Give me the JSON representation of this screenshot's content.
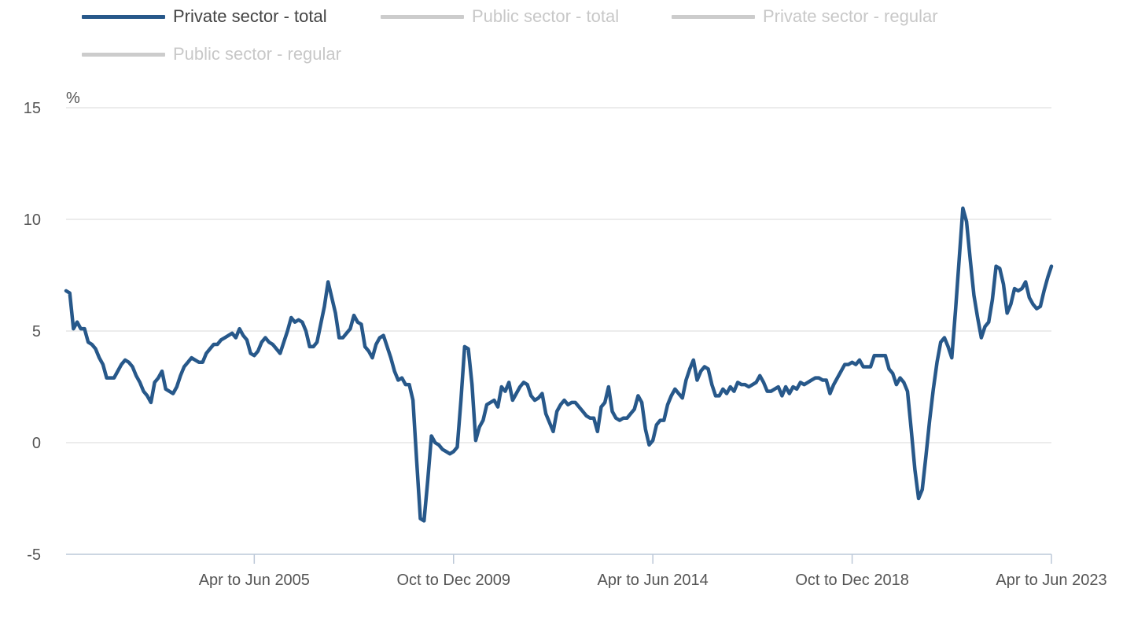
{
  "chart_data": {
    "type": "line",
    "y_unit": "%",
    "ylim": [
      -5,
      15
    ],
    "y_ticks": [
      15,
      10,
      5,
      0,
      -5
    ],
    "grid": true,
    "legend_position": "top-left",
    "x_tick_labels": [
      "Apr to Jun 2005",
      "Oct to Dec 2009",
      "Apr to Jun 2014",
      "Oct to Dec 2018",
      "Apr to Jun 2023"
    ],
    "legend": [
      {
        "name": "Private sector - total",
        "color": "#27588a",
        "active": true
      },
      {
        "name": "Public sector - total",
        "color": "#cccccc",
        "active": false
      },
      {
        "name": "Private sector - regular",
        "color": "#cccccc",
        "active": false
      },
      {
        "name": "Public sector - regular",
        "color": "#cccccc",
        "active": false
      }
    ],
    "x_period": {
      "first": "Jan to Mar 2001",
      "last": "Apr to Jun 2023",
      "step": "monthly rolling 3-month"
    },
    "series": [
      {
        "name": "Private sector - total",
        "color": "#27588a",
        "values": [
          6.8,
          6.7,
          5.1,
          5.4,
          5.1,
          5.1,
          4.5,
          4.4,
          4.2,
          3.8,
          3.5,
          2.9,
          2.9,
          2.9,
          3.2,
          3.5,
          3.7,
          3.6,
          3.4,
          3.0,
          2.7,
          2.3,
          2.1,
          1.8,
          2.7,
          2.9,
          3.2,
          2.4,
          2.3,
          2.2,
          2.5,
          3.0,
          3.4,
          3.6,
          3.8,
          3.7,
          3.6,
          3.6,
          4.0,
          4.2,
          4.4,
          4.4,
          4.6,
          4.7,
          4.8,
          4.9,
          4.7,
          5.1,
          4.8,
          4.6,
          4.0,
          3.9,
          4.1,
          4.5,
          4.7,
          4.5,
          4.4,
          4.2,
          4.0,
          4.5,
          5.0,
          5.6,
          5.4,
          5.5,
          5.4,
          5.0,
          4.3,
          4.3,
          4.5,
          5.3,
          6.1,
          7.2,
          6.5,
          5.8,
          4.7,
          4.7,
          4.9,
          5.1,
          5.7,
          5.4,
          5.3,
          4.3,
          4.1,
          3.8,
          4.4,
          4.7,
          4.8,
          4.3,
          3.8,
          3.2,
          2.8,
          2.9,
          2.6,
          2.6,
          1.9,
          -0.8,
          -3.4,
          -3.5,
          -1.7,
          0.3,
          0.0,
          -0.1,
          -0.3,
          -0.4,
          -0.5,
          -0.4,
          -0.2,
          1.9,
          4.3,
          4.2,
          2.6,
          0.1,
          0.7,
          1.0,
          1.7,
          1.8,
          1.9,
          1.6,
          2.5,
          2.3,
          2.7,
          1.9,
          2.2,
          2.5,
          2.7,
          2.6,
          2.1,
          1.9,
          2.0,
          2.2,
          1.3,
          0.9,
          0.5,
          1.4,
          1.7,
          1.9,
          1.7,
          1.8,
          1.8,
          1.6,
          1.4,
          1.2,
          1.1,
          1.1,
          0.5,
          1.6,
          1.8,
          2.5,
          1.4,
          1.1,
          1.0,
          1.1,
          1.1,
          1.3,
          1.5,
          2.1,
          1.8,
          0.6,
          -0.1,
          0.1,
          0.8,
          1.0,
          1.0,
          1.7,
          2.1,
          2.4,
          2.2,
          2.0,
          2.8,
          3.3,
          3.7,
          2.8,
          3.2,
          3.4,
          3.3,
          2.6,
          2.1,
          2.1,
          2.4,
          2.2,
          2.5,
          2.3,
          2.7,
          2.6,
          2.6,
          2.5,
          2.6,
          2.7,
          3.0,
          2.7,
          2.3,
          2.3,
          2.4,
          2.5,
          2.1,
          2.5,
          2.2,
          2.5,
          2.4,
          2.7,
          2.6,
          2.7,
          2.8,
          2.9,
          2.9,
          2.8,
          2.8,
          2.2,
          2.6,
          2.9,
          3.2,
          3.5,
          3.5,
          3.6,
          3.5,
          3.7,
          3.4,
          3.4,
          3.4,
          3.9,
          3.9,
          3.9,
          3.9,
          3.3,
          3.1,
          2.6,
          2.9,
          2.7,
          2.3,
          0.6,
          -1.2,
          -2.5,
          -2.1,
          -0.6,
          1.0,
          2.4,
          3.6,
          4.5,
          4.7,
          4.3,
          3.8,
          5.9,
          8.2,
          10.5,
          9.9,
          8.2,
          6.6,
          5.6,
          4.7,
          5.2,
          5.4,
          6.4,
          7.9,
          7.8,
          7.1,
          5.8,
          6.2,
          6.9,
          6.8,
          6.9,
          7.2,
          6.5,
          6.2,
          6.0,
          6.1,
          6.8,
          7.4,
          7.9
        ]
      }
    ]
  }
}
